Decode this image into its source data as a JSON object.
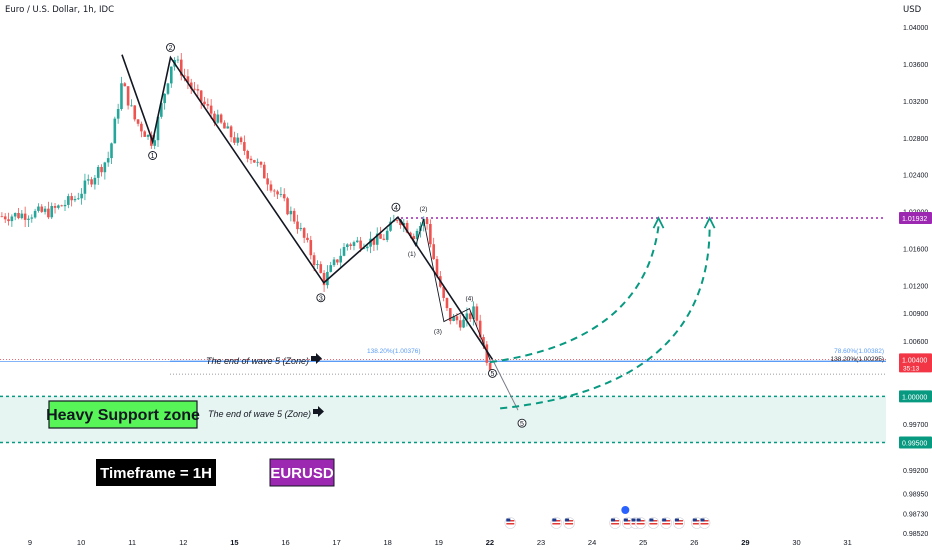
{
  "header": {
    "title": "Euro / U.S. Dollar, 1h, IDC",
    "currency": "USD"
  },
  "colors": {
    "up": "#26a69a",
    "down": "#ef5350",
    "wave": "#131722",
    "projection": "#089981",
    "resistance": "#9c27b0",
    "support": "#089981",
    "price": "#f23645",
    "fib": "#5b9cf6"
  },
  "chart_data": {
    "type": "candlestick",
    "symbol": "EURUSD",
    "timeframe": "1h",
    "ylim": [
      0.9845,
      1.0445
    ],
    "y_ticks": [
      1.04,
      1.036,
      1.032,
      1.028,
      1.024,
      1.02,
      1.016,
      1.012,
      1.009,
      1.006,
      1.0,
      0.997,
      0.992,
      0.9895,
      0.9873,
      0.9852
    ],
    "x_ticks": [
      {
        "label": "9",
        "d": 9
      },
      {
        "label": "10",
        "d": 10
      },
      {
        "label": "11",
        "d": 11
      },
      {
        "label": "12",
        "d": 12
      },
      {
        "label": "15",
        "d": 13
      },
      {
        "label": "16",
        "d": 14
      },
      {
        "label": "17",
        "d": 15
      },
      {
        "label": "18",
        "d": 16
      },
      {
        "label": "19",
        "d": 17
      },
      {
        "label": "22",
        "d": 18
      },
      {
        "label": "23",
        "d": 19
      },
      {
        "label": "24",
        "d": 20
      },
      {
        "label": "25",
        "d": 21
      },
      {
        "label": "26",
        "d": 22
      },
      {
        "label": "29",
        "d": 23
      },
      {
        "label": "30",
        "d": 24
      },
      {
        "label": "31",
        "d": 25
      }
    ],
    "price_path": [
      {
        "d": 8.45,
        "p": 1.0195
      },
      {
        "d": 9.4,
        "p": 1.02
      },
      {
        "d": 9.9,
        "p": 1.0215
      },
      {
        "d": 10.55,
        "p": 1.026
      },
      {
        "d": 10.8,
        "p": 1.034
      },
      {
        "d": 11.05,
        "p": 1.03
      },
      {
        "d": 11.4,
        "p": 1.0275
      },
      {
        "d": 11.8,
        "p": 1.0368
      },
      {
        "d": 12.2,
        "p": 1.033
      },
      {
        "d": 12.8,
        "p": 1.029
      },
      {
        "d": 13.4,
        "p": 1.0255
      },
      {
        "d": 14.2,
        "p": 1.019
      },
      {
        "d": 14.75,
        "p": 1.0125
      },
      {
        "d": 15.2,
        "p": 1.0165
      },
      {
        "d": 15.9,
        "p": 1.017
      },
      {
        "d": 16.2,
        "p": 1.0195
      },
      {
        "d": 16.5,
        "p": 1.0175
      },
      {
        "d": 16.75,
        "p": 1.0193
      },
      {
        "d": 17.0,
        "p": 1.012
      },
      {
        "d": 17.2,
        "p": 1.0085
      },
      {
        "d": 17.5,
        "p": 1.008
      },
      {
        "d": 17.7,
        "p": 1.0093
      },
      {
        "d": 17.85,
        "p": 1.006
      },
      {
        "d": 18.0,
        "p": 1.003
      },
      {
        "d": 18.05,
        "p": 1.004
      }
    ],
    "current_price": 1.004,
    "countdown": "35:13",
    "resistance_level": 1.01932,
    "support_zone": {
      "top": 1.0,
      "bottom": 0.995
    },
    "fib_levels": [
      {
        "label": "138.20%(1.00376)",
        "value": 1.00376
      },
      {
        "label": "78.60%(1.00382)",
        "value": 1.00382
      },
      {
        "label": "138.20%(1.00295)",
        "value": 1.00295
      }
    ],
    "wave_main": [
      {
        "label": "",
        "d": 10.8,
        "p": 1.037
      },
      {
        "label": "1",
        "d": 11.4,
        "p": 1.0276
      },
      {
        "label": "2",
        "d": 11.75,
        "p": 1.0367
      },
      {
        "label": "3",
        "d": 14.75,
        "p": 1.0123
      },
      {
        "label": "4",
        "d": 16.2,
        "p": 1.0194
      },
      {
        "label": "5",
        "d": 18.05,
        "p": 1.004
      }
    ],
    "wave_ext": {
      "label": "5",
      "d": 18.55,
      "p": 0.9985
    },
    "wave_sub": [
      {
        "label": "",
        "d": 16.25,
        "p": 1.0192
      },
      {
        "label": "(1)",
        "d": 16.55,
        "p": 1.0163
      },
      {
        "label": "(2)",
        "d": 16.7,
        "p": 1.0192
      },
      {
        "label": "(3)",
        "d": 17.1,
        "p": 1.0081
      },
      {
        "label": "(4)",
        "d": 17.6,
        "p": 1.0095
      },
      {
        "label": "",
        "d": 18.0,
        "p": 1.004
      }
    ],
    "projections": [
      {
        "from": {
          "d": 18.0,
          "p": 1.0037
        },
        "ctrl": {
          "d": 21.0,
          "p": 1.006
        },
        "to": {
          "d": 21.3,
          "p": 1.0193
        }
      },
      {
        "from": {
          "d": 18.2,
          "p": 0.9987
        },
        "ctrl": {
          "d": 22.3,
          "p": 1.001
        },
        "to": {
          "d": 22.3,
          "p": 1.0193
        }
      }
    ],
    "annotations": {
      "wave_end_1": "The end of wave 5 (Zone)",
      "wave_end_2": "The end of wave 5 (Zone)",
      "support_label": "Heavy Support zone",
      "timeframe_label": "Timeframe = 1H",
      "symbol_label": "EURUSD"
    },
    "event_days": [
      18.4,
      19.3,
      19.55,
      20.45,
      20.7,
      20.85,
      20.95,
      21.2,
      21.45,
      21.7,
      22.05,
      22.2
    ],
    "event_highlight_day": 20.65
  }
}
